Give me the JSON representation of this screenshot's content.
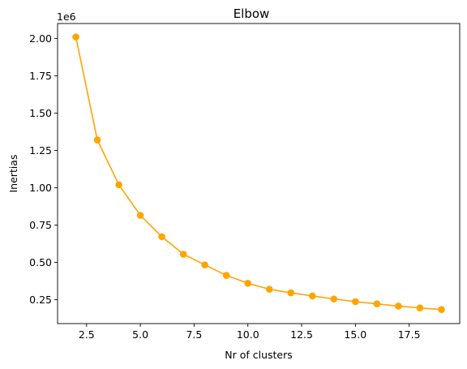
{
  "chart_data": {
    "type": "line",
    "title": "Elbow",
    "xlabel": "Nr of clusters",
    "ylabel": "Inertias",
    "y_offset_label": "1e6",
    "xlim": [
      1.15,
      19.85
    ],
    "ylim": [
      90000,
      2100000
    ],
    "x_ticks": [
      2.5,
      5.0,
      7.5,
      10.0,
      12.5,
      15.0,
      17.5
    ],
    "x_tick_labels": [
      "2.5",
      "5.0",
      "7.5",
      "10.0",
      "12.5",
      "15.0",
      "17.5"
    ],
    "y_ticks": [
      250000,
      500000,
      750000,
      1000000,
      1250000,
      1500000,
      1750000,
      2000000
    ],
    "y_tick_labels": [
      "0.25",
      "0.50",
      "0.75",
      "1.00",
      "1.25",
      "1.50",
      "1.75",
      "2.00"
    ],
    "grid": false,
    "series": [
      {
        "color": "#FFA500",
        "marker": "circle",
        "x": [
          2,
          3,
          4,
          5,
          6,
          7,
          8,
          9,
          10,
          11,
          12,
          13,
          14,
          15,
          16,
          17,
          18,
          19
        ],
        "y": [
          2010000,
          1320000,
          1020000,
          815000,
          672000,
          555000,
          483000,
          413000,
          360000,
          320000,
          296000,
          275000,
          255000,
          237000,
          222000,
          207000,
          195000,
          184000
        ]
      }
    ]
  }
}
